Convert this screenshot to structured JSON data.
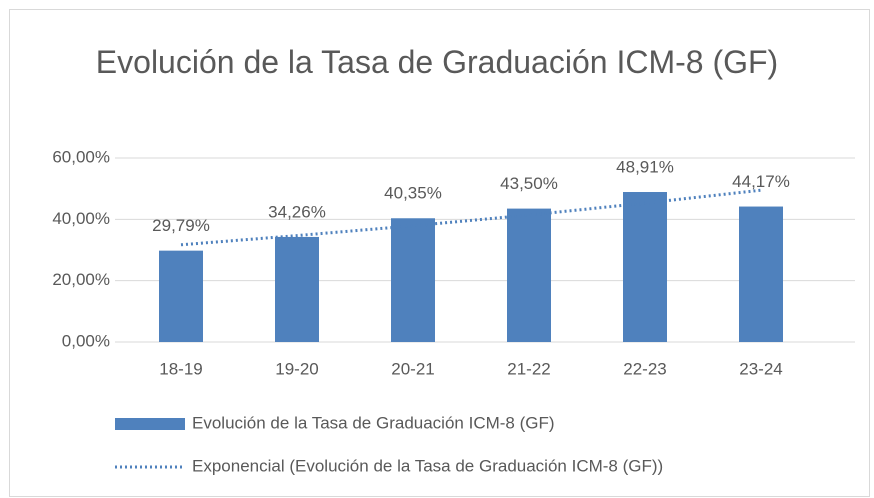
{
  "chart_data": {
    "type": "bar",
    "title": "Evolución de la Tasa de Graduación ICM-8 (GF)",
    "categories": [
      "18-19",
      "19-20",
      "20-21",
      "21-22",
      "22-23",
      "23-24"
    ],
    "series": [
      {
        "name": "Evolución de la Tasa de Graduación ICM-8 (GF)",
        "color": "#4f81bd",
        "values": [
          29.79,
          34.26,
          40.35,
          43.5,
          48.91,
          44.17
        ],
        "value_labels": [
          "29,79%",
          "34,26%",
          "40,35%",
          "43,50%",
          "48,91%",
          "44,17%"
        ]
      },
      {
        "name": "Exponencial (Evolución de la Tasa de Graduación ICM-8 (GF))",
        "type": "line",
        "color": "#4f81bd",
        "values": [
          31.7,
          34.7,
          37.9,
          41.4,
          45.3,
          49.5
        ]
      }
    ],
    "ylim": [
      0,
      60
    ],
    "yticks": [
      {
        "value": 0,
        "label": "0,00%"
      },
      {
        "value": 20,
        "label": "20,00%"
      },
      {
        "value": 40,
        "label": "40,00%"
      },
      {
        "value": 60,
        "label": "60,00%"
      }
    ],
    "grid": true,
    "legend": "bottom"
  }
}
